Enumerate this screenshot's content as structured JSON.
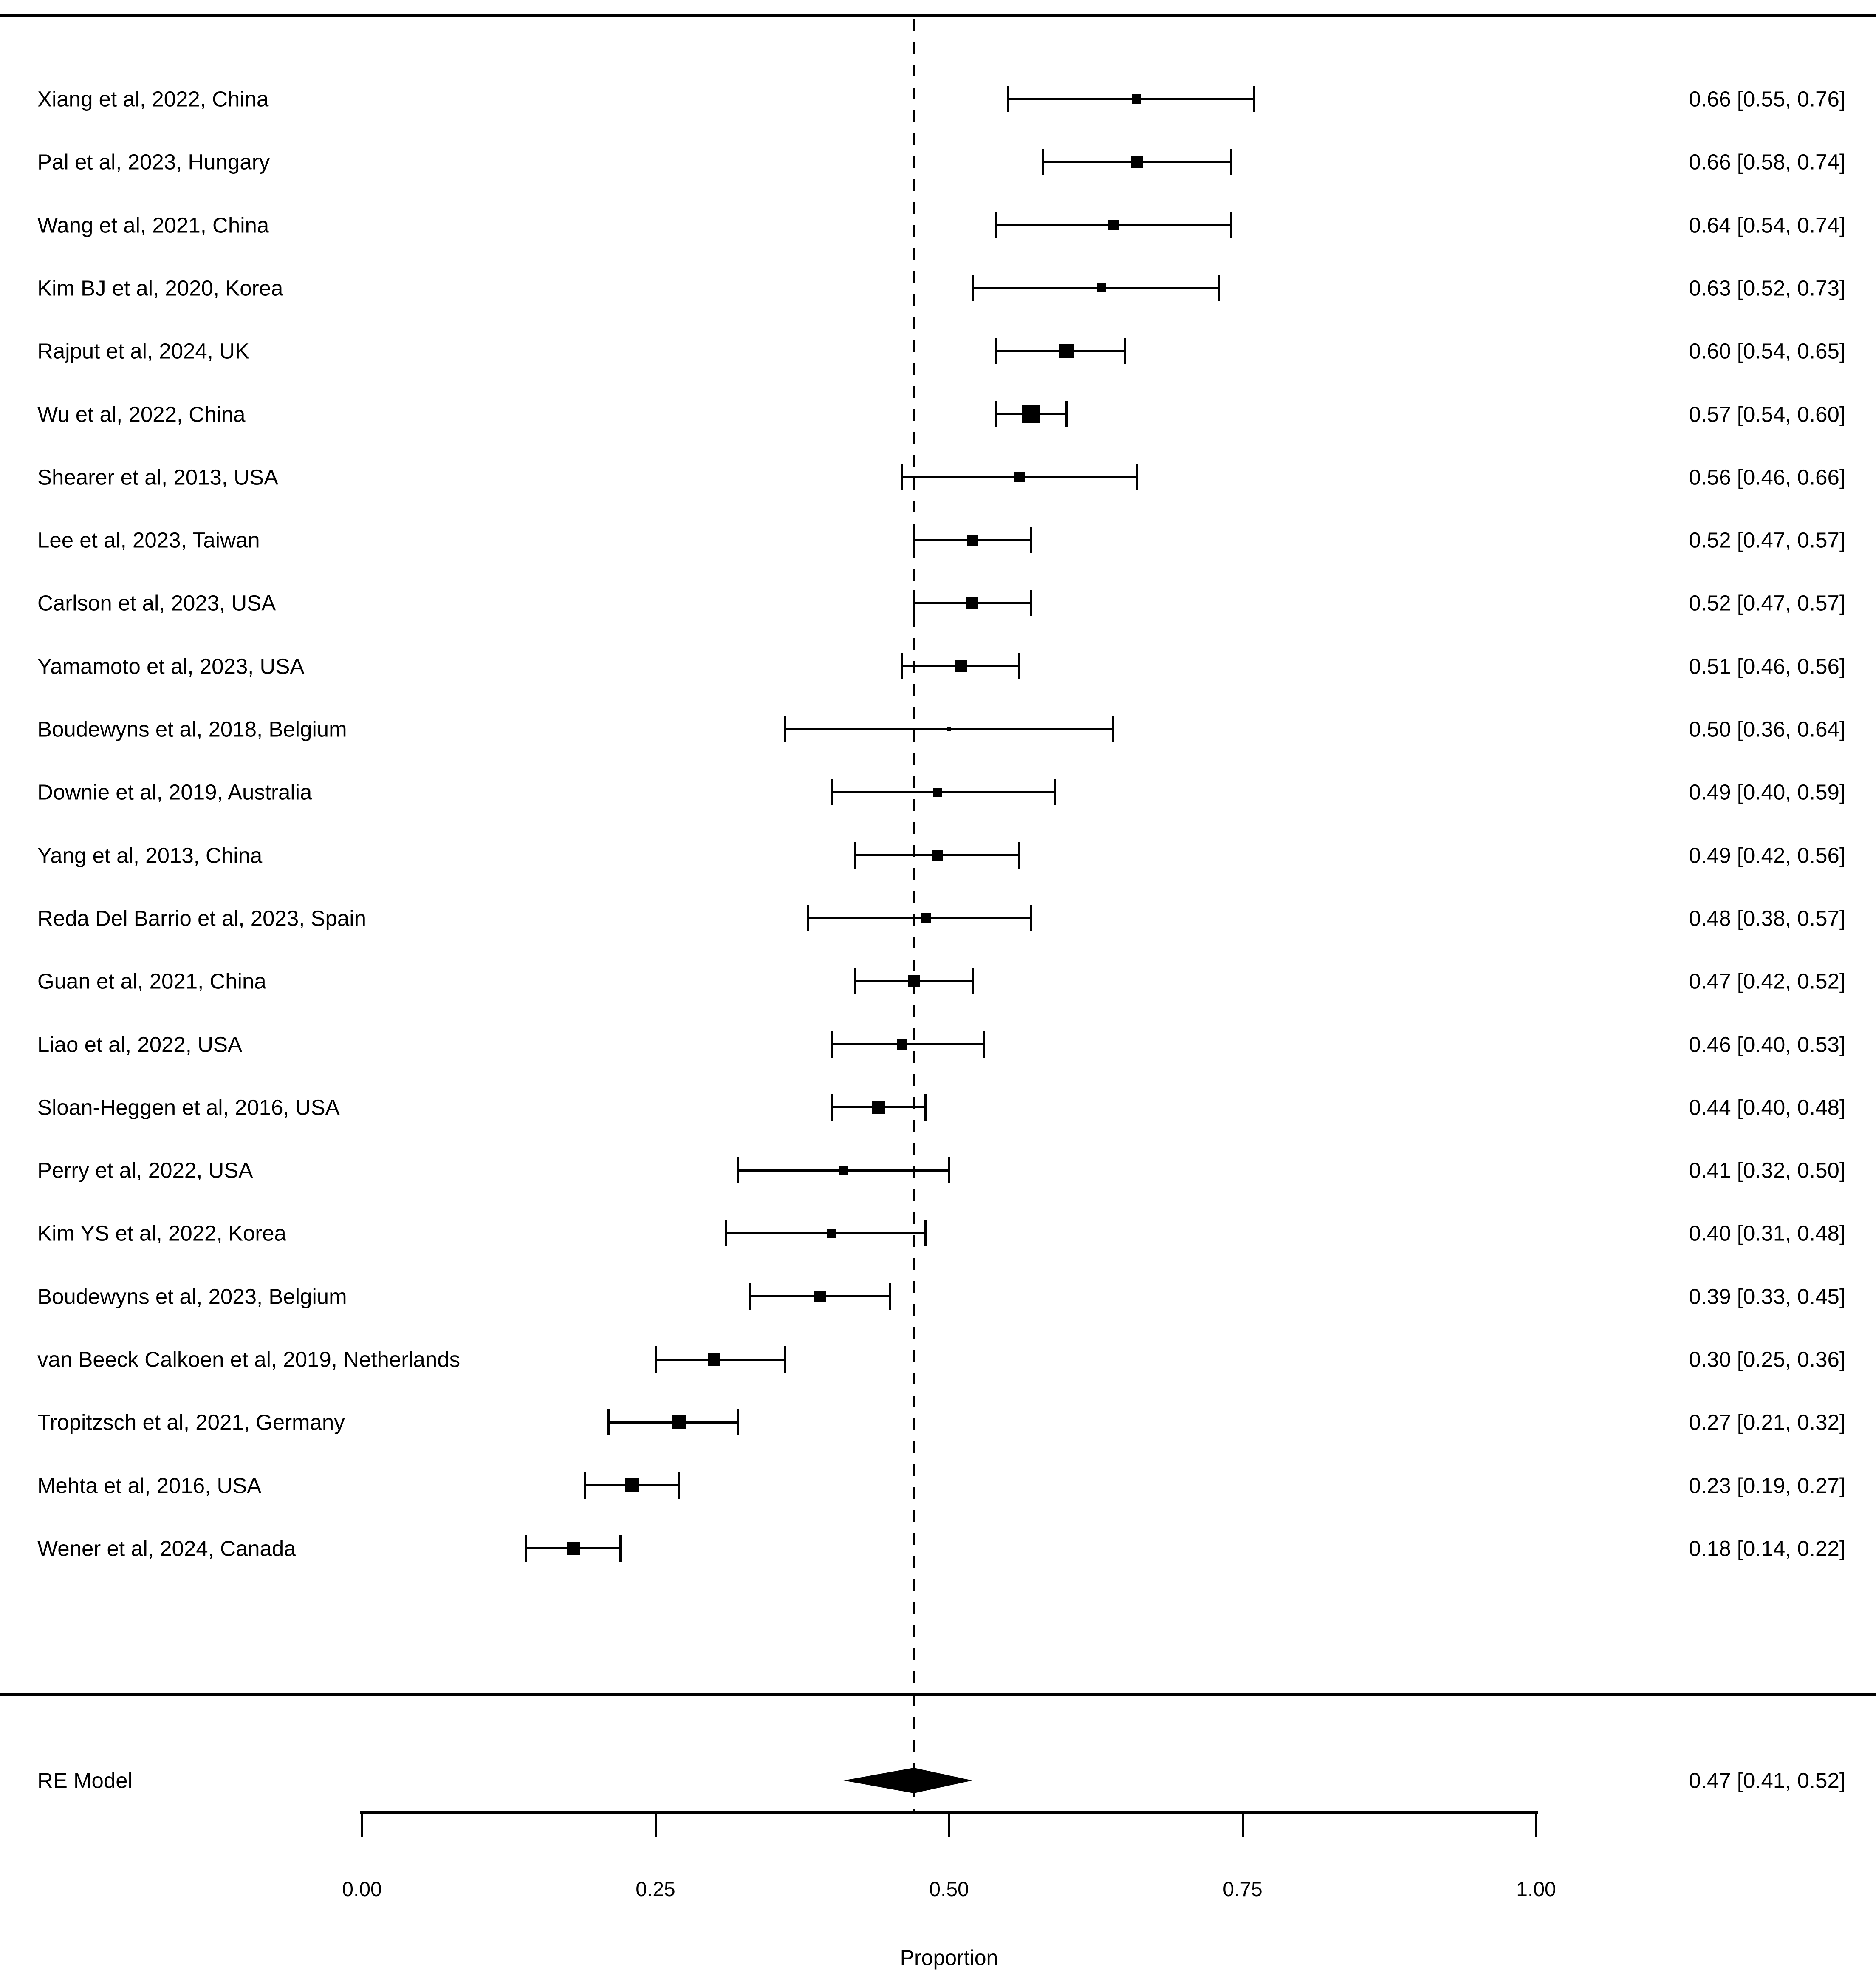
{
  "chart_data": {
    "type": "scatter",
    "variant": "forest-plot",
    "title": "",
    "xlabel": "Proportion",
    "legend": null,
    "grid": false,
    "axis": {
      "xlim": [
        0.0,
        1.0
      ],
      "ticks": [
        0.0,
        0.25,
        0.5,
        0.75,
        1.0
      ],
      "tick_labels": [
        "0.00",
        "0.25",
        "0.50",
        "0.75",
        "1.00"
      ]
    },
    "reference_line": 0.47,
    "colors": {
      "foreground": "#000000",
      "background": "#ffffff"
    },
    "studies": [
      {
        "label": "Xiang et al, 2022, China",
        "estimate": 0.66,
        "ci_lower": 0.55,
        "ci_upper": 0.76,
        "annotation": "0.66 [0.55, 0.76]",
        "marker_size_px": 22
      },
      {
        "label": "Pal et al, 2023, Hungary",
        "estimate": 0.66,
        "ci_lower": 0.58,
        "ci_upper": 0.74,
        "annotation": "0.66 [0.58, 0.74]",
        "marker_size_px": 27
      },
      {
        "label": "Wang et al, 2021, China",
        "estimate": 0.64,
        "ci_lower": 0.54,
        "ci_upper": 0.74,
        "annotation": "0.64 [0.54, 0.74]",
        "marker_size_px": 24
      },
      {
        "label": "Kim BJ et al, 2020, Korea",
        "estimate": 0.63,
        "ci_lower": 0.52,
        "ci_upper": 0.73,
        "annotation": "0.63 [0.52, 0.73]",
        "marker_size_px": 21
      },
      {
        "label": "Rajput et al, 2024, UK",
        "estimate": 0.6,
        "ci_lower": 0.54,
        "ci_upper": 0.65,
        "annotation": "0.60 [0.54, 0.65]",
        "marker_size_px": 34
      },
      {
        "label": "Wu et al, 2022, China",
        "estimate": 0.57,
        "ci_lower": 0.54,
        "ci_upper": 0.6,
        "annotation": "0.57 [0.54, 0.60]",
        "marker_size_px": 42
      },
      {
        "label": "Shearer et al, 2013, USA",
        "estimate": 0.56,
        "ci_lower": 0.46,
        "ci_upper": 0.66,
        "annotation": "0.56 [0.46, 0.66]",
        "marker_size_px": 25
      },
      {
        "label": "Lee et al, 2023, Taiwan",
        "estimate": 0.52,
        "ci_lower": 0.47,
        "ci_upper": 0.57,
        "annotation": "0.52 [0.47, 0.57]",
        "marker_size_px": 27
      },
      {
        "label": "Carlson et al, 2023, USA",
        "estimate": 0.52,
        "ci_lower": 0.47,
        "ci_upper": 0.57,
        "annotation": "0.52 [0.47, 0.57]",
        "marker_size_px": 28
      },
      {
        "label": "Yamamoto et al, 2023, USA",
        "estimate": 0.51,
        "ci_lower": 0.46,
        "ci_upper": 0.56,
        "annotation": "0.51 [0.46, 0.56]",
        "marker_size_px": 29
      },
      {
        "label": "Boudewyns et al, 2018, Belgium",
        "estimate": 0.5,
        "ci_lower": 0.36,
        "ci_upper": 0.64,
        "annotation": "0.50 [0.36, 0.64]",
        "marker_size_px": 9
      },
      {
        "label": "Downie et al, 2019, Australia",
        "estimate": 0.49,
        "ci_lower": 0.4,
        "ci_upper": 0.59,
        "annotation": "0.49 [0.40, 0.59]",
        "marker_size_px": 21
      },
      {
        "label": "Yang et al, 2013, China",
        "estimate": 0.49,
        "ci_lower": 0.42,
        "ci_upper": 0.56,
        "annotation": "0.49 [0.42, 0.56]",
        "marker_size_px": 26
      },
      {
        "label": "Reda Del Barrio et al, 2023, Spain",
        "estimate": 0.48,
        "ci_lower": 0.38,
        "ci_upper": 0.57,
        "annotation": "0.48 [0.38, 0.57]",
        "marker_size_px": 24
      },
      {
        "label": "Guan et al, 2021, China",
        "estimate": 0.47,
        "ci_lower": 0.42,
        "ci_upper": 0.52,
        "annotation": "0.47 [0.42, 0.52]",
        "marker_size_px": 28
      },
      {
        "label": "Liao et al, 2022, USA",
        "estimate": 0.46,
        "ci_lower": 0.4,
        "ci_upper": 0.53,
        "annotation": "0.46 [0.40, 0.53]",
        "marker_size_px": 25
      },
      {
        "label": "Sloan-Heggen et al, 2016, USA",
        "estimate": 0.44,
        "ci_lower": 0.4,
        "ci_upper": 0.48,
        "annotation": "0.44 [0.40, 0.48]",
        "marker_size_px": 31
      },
      {
        "label": "Perry et al, 2022, USA",
        "estimate": 0.41,
        "ci_lower": 0.32,
        "ci_upper": 0.5,
        "annotation": "0.41 [0.32, 0.50]",
        "marker_size_px": 22
      },
      {
        "label": "Kim YS et al, 2022, Korea",
        "estimate": 0.4,
        "ci_lower": 0.31,
        "ci_upper": 0.48,
        "annotation": "0.40 [0.31, 0.48]",
        "marker_size_px": 22
      },
      {
        "label": "Boudewyns et al, 2023, Belgium",
        "estimate": 0.39,
        "ci_lower": 0.33,
        "ci_upper": 0.45,
        "annotation": "0.39 [0.33, 0.45]",
        "marker_size_px": 28
      },
      {
        "label": "van Beeck Calkoen et al, 2019, Netherlands",
        "estimate": 0.3,
        "ci_lower": 0.25,
        "ci_upper": 0.36,
        "annotation": "0.30 [0.25, 0.36]",
        "marker_size_px": 30
      },
      {
        "label": "Tropitzsch et al, 2021, Germany",
        "estimate": 0.27,
        "ci_lower": 0.21,
        "ci_upper": 0.32,
        "annotation": "0.27 [0.21, 0.32]",
        "marker_size_px": 32
      },
      {
        "label": "Mehta et al, 2016, USA",
        "estimate": 0.23,
        "ci_lower": 0.19,
        "ci_upper": 0.27,
        "annotation": "0.23 [0.19, 0.27]",
        "marker_size_px": 33
      },
      {
        "label": "Wener et al, 2024, Canada",
        "estimate": 0.18,
        "ci_lower": 0.14,
        "ci_upper": 0.22,
        "annotation": "0.18 [0.14, 0.22]",
        "marker_size_px": 32
      }
    ],
    "summary": {
      "label": "RE Model",
      "estimate": 0.47,
      "ci_lower": 0.41,
      "ci_upper": 0.52,
      "annotation": "0.47 [0.41, 0.52]"
    }
  }
}
